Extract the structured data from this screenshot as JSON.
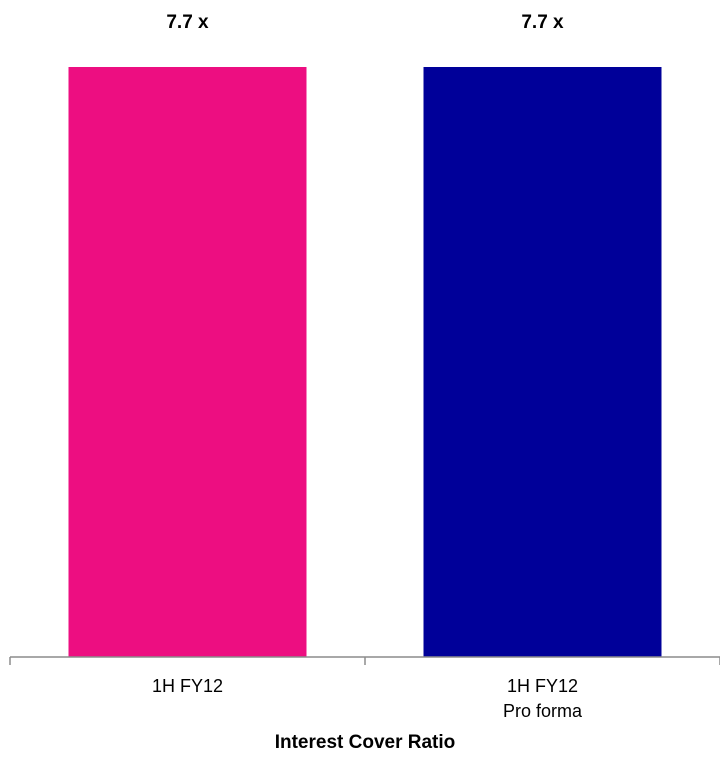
{
  "chart_data": {
    "type": "bar",
    "categories": [
      [
        "1H FY12"
      ],
      [
        "1H FY12",
        "Pro forma"
      ]
    ],
    "values": [
      7.7,
      7.7
    ],
    "data_labels": [
      "7.7 x",
      "7.7 x"
    ],
    "colors": [
      "#ED0E81",
      "#000099"
    ],
    "xlabel": "Interest Cover Ratio",
    "ylabel": "",
    "grid": false,
    "legend": "none"
  }
}
